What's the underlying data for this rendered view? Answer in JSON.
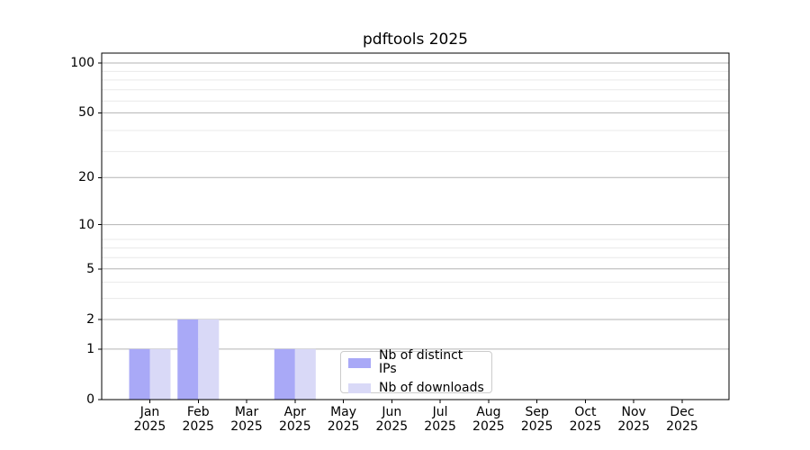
{
  "title": "pdftools 2025",
  "chart_data": {
    "type": "bar",
    "title": "pdftools 2025",
    "categories": [
      "Jan 2025",
      "Feb 2025",
      "Mar 2025",
      "Apr 2025",
      "May 2025",
      "Jun 2025",
      "Jul 2025",
      "Aug 2025",
      "Sep 2025",
      "Oct 2025",
      "Nov 2025",
      "Dec 2025"
    ],
    "series": [
      {
        "name": "Nb of distinct IPs",
        "color": "#a9a9f7",
        "values": [
          1,
          2,
          0,
          1,
          0,
          0,
          0,
          0,
          0,
          0,
          0,
          0
        ]
      },
      {
        "name": "Nb of downloads",
        "color": "#d9d9f7",
        "values": [
          1,
          2,
          0,
          1,
          0,
          0,
          0,
          0,
          0,
          0,
          0,
          0
        ]
      }
    ],
    "xlabel": "",
    "ylabel": "",
    "y_axis": {
      "scale": "log1p",
      "tick_values": [
        0,
        1,
        2,
        5,
        10,
        20,
        50,
        100
      ],
      "tick_labels": [
        "0",
        "1",
        "2",
        "5",
        "10",
        "20",
        "50",
        "100"
      ],
      "minor_grid_values": [
        3,
        4,
        6,
        7,
        8,
        29,
        39,
        59,
        69,
        79,
        89
      ],
      "ylim": [
        0,
        115
      ]
    },
    "grid": true,
    "legend_position": "inside-bottom-center",
    "colors": {
      "grid_major": "#b3b3b3",
      "grid_minor": "#e9e9e9",
      "axis": "#000000",
      "legend_border": "#cccccc",
      "background": "#ffffff"
    }
  }
}
